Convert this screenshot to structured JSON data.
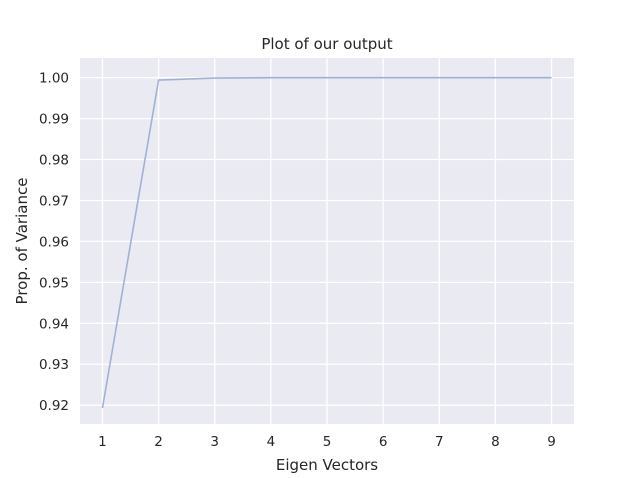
{
  "chart_data": {
    "type": "line",
    "title": "Plot of our output",
    "xlabel": "Eigen Vectors",
    "ylabel": "Prop. of Variance",
    "x": [
      1,
      2,
      3,
      4,
      5,
      6,
      7,
      8,
      9
    ],
    "series": [
      {
        "values": [
          0.9193,
          0.9994,
          0.9999,
          1.0,
          1.0,
          1.0,
          1.0,
          1.0,
          1.0
        ],
        "color": "#9fb2d6"
      }
    ],
    "xlim": [
      0.6,
      9.4
    ],
    "ylim": [
      0.9154,
      1.0048
    ],
    "xticks": [
      1,
      2,
      3,
      4,
      5,
      6,
      7,
      8,
      9
    ],
    "xtick_labels": [
      "1",
      "2",
      "3",
      "4",
      "5",
      "6",
      "7",
      "8",
      "9"
    ],
    "yticks": [
      0.92,
      0.93,
      0.94,
      0.95,
      0.96,
      0.97,
      0.98,
      0.99,
      1.0
    ],
    "ytick_labels": [
      "0.92",
      "0.93",
      "0.94",
      "0.95",
      "0.96",
      "0.97",
      "0.98",
      "0.99",
      "1.00"
    ],
    "grid": true,
    "style": {
      "background": "#eaeaf2",
      "grid_color": "#ffffff"
    }
  }
}
